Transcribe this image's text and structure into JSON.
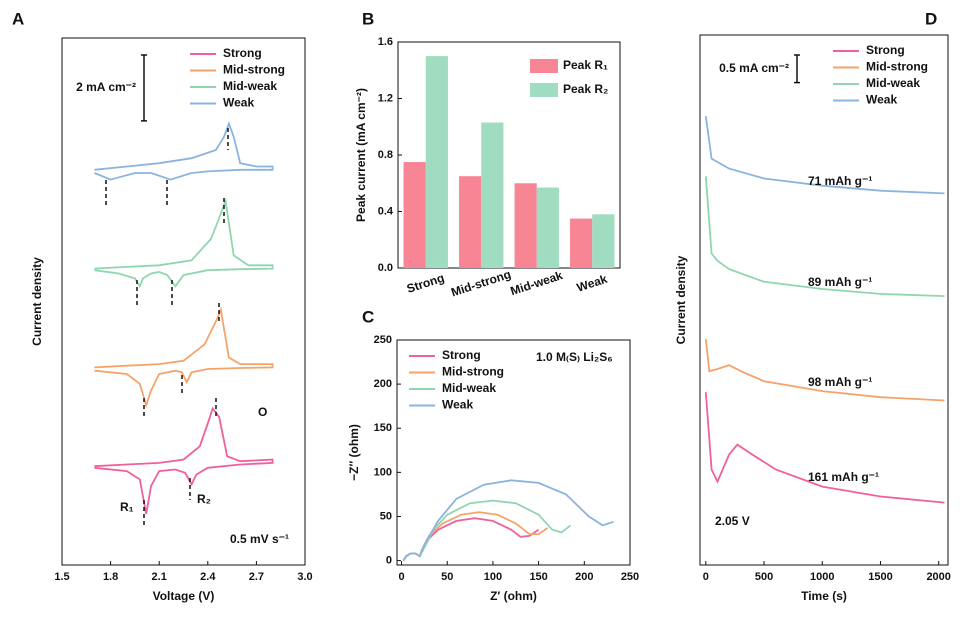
{
  "chart_data": [
    {
      "type": "line",
      "panel": "A",
      "xlabel": "Voltage (V)",
      "ylabel": "Current density",
      "xlim": [
        1.5,
        3.0
      ],
      "xticks": [
        1.5,
        1.8,
        2.1,
        2.4,
        2.7,
        {
          "value": 3,
          "label": "3.0"
        }
      ],
      "ylim": [
        0,
        16
      ],
      "legend": "upper right",
      "scale_bar": {
        "value": 2,
        "label": "2 mA cm⁻²"
      },
      "annotations": [
        "R₁",
        "R₂",
        "O",
        "0.5 mV s⁻¹"
      ],
      "series": [
        {
          "name": "Strong",
          "color": "#f0609e",
          "x": [
            1.7,
            1.9,
            2.1,
            2.25,
            2.35,
            2.4,
            2.43,
            2.47,
            2.52,
            2.6,
            2.8,
            2.8,
            2.6,
            2.4,
            2.33,
            2.3,
            2.26,
            2.2,
            2.1,
            2.05,
            2.02,
            1.98,
            1.9,
            1.7
          ],
          "values": [
            3.0,
            3.05,
            3.1,
            3.2,
            3.6,
            4.3,
            4.75,
            4.5,
            3.3,
            3.15,
            3.2,
            3.1,
            3.05,
            2.95,
            2.75,
            2.45,
            2.8,
            2.9,
            2.85,
            2.4,
            1.55,
            2.6,
            2.85,
            2.95
          ]
        },
        {
          "name": "Mid-strong",
          "color": "#f5a36a",
          "x": [
            1.7,
            1.9,
            2.1,
            2.25,
            2.38,
            2.43,
            2.46,
            2.48,
            2.53,
            2.6,
            2.8,
            2.8,
            2.6,
            2.4,
            2.3,
            2.27,
            2.24,
            2.2,
            2.1,
            2.05,
            2.02,
            1.98,
            1.9,
            1.7
          ],
          "values": [
            6.0,
            6.05,
            6.1,
            6.2,
            6.7,
            7.2,
            7.5,
            7.75,
            6.3,
            6.1,
            6.1,
            6.0,
            5.98,
            5.95,
            5.85,
            5.55,
            5.85,
            5.9,
            5.8,
            5.3,
            4.85,
            5.5,
            5.8,
            5.9
          ]
        },
        {
          "name": "Mid-weak",
          "color": "#8fd6b0",
          "x": [
            1.7,
            1.9,
            2.1,
            2.3,
            2.42,
            2.46,
            2.49,
            2.51,
            2.56,
            2.65,
            2.8,
            2.8,
            2.6,
            2.4,
            2.25,
            2.2,
            2.15,
            2.1,
            2.05,
            2.0,
            1.98,
            1.95,
            1.85,
            1.7
          ],
          "values": [
            9.0,
            9.05,
            9.1,
            9.25,
            9.9,
            10.4,
            10.8,
            11.05,
            9.4,
            9.1,
            9.1,
            9.0,
            8.98,
            8.95,
            8.8,
            8.46,
            8.8,
            8.9,
            8.85,
            8.7,
            8.46,
            8.7,
            8.85,
            8.95
          ]
        },
        {
          "name": "Weak",
          "color": "#8ab4e0",
          "x": [
            1.7,
            1.9,
            2.1,
            2.3,
            2.45,
            2.5,
            2.53,
            2.56,
            2.6,
            2.7,
            2.8,
            2.8,
            2.6,
            2.4,
            2.3,
            2.17,
            2.05,
            1.95,
            1.8,
            1.7
          ],
          "values": [
            12.0,
            12.1,
            12.2,
            12.35,
            12.6,
            13.0,
            13.4,
            13.0,
            12.2,
            12.1,
            12.1,
            12.0,
            12.0,
            11.95,
            11.9,
            11.7,
            11.9,
            11.9,
            11.7,
            11.9
          ]
        }
      ]
    },
    {
      "type": "bar",
      "panel": "B",
      "ylabel": "Peak current (mA cm⁻²)",
      "categories": [
        "Strong",
        "Mid-strong",
        "Mid-weak",
        "Weak"
      ],
      "ylim": [
        0,
        1.6
      ],
      "yticks": [
        {
          "value": 0,
          "label": "0.0"
        },
        0.4,
        0.8,
        1.2,
        1.6
      ],
      "legend": "upper right",
      "series": [
        {
          "name": "Peak R₁",
          "color": "#f78593",
          "values": [
            0.75,
            0.65,
            0.6,
            0.35
          ]
        },
        {
          "name": "Peak R₂",
          "color": "#9fdcc0",
          "values": [
            1.5,
            1.03,
            0.57,
            0.38
          ]
        }
      ]
    },
    {
      "type": "line",
      "panel": "C",
      "xlabel": "Z′ (ohm)",
      "ylabel": "−Z″ (ohm)",
      "xlim": [
        -5,
        250
      ],
      "xticks": [
        0,
        50,
        100,
        150,
        200,
        250
      ],
      "ylim": [
        -5,
        250
      ],
      "yticks": [
        0,
        50,
        100,
        150,
        200,
        250
      ],
      "legend": "upper left",
      "annotations": [
        "1.0 M₍S₎ Li₂S₆"
      ],
      "series": [
        {
          "name": "Strong",
          "color": "#f0609e",
          "x": [
            2,
            5,
            10,
            15,
            20,
            22,
            30,
            40,
            60,
            80,
            100,
            120,
            130,
            140,
            150
          ],
          "values": [
            0,
            5,
            8,
            8,
            5,
            10,
            25,
            35,
            45,
            48,
            45,
            35,
            27,
            28,
            35
          ]
        },
        {
          "name": "Mid-strong",
          "color": "#f5a36a",
          "x": [
            2,
            5,
            10,
            15,
            20,
            22,
            30,
            45,
            65,
            85,
            105,
            125,
            140,
            150,
            160
          ],
          "values": [
            0,
            5,
            8,
            8,
            5,
            12,
            28,
            42,
            52,
            55,
            52,
            42,
            30,
            30,
            37
          ]
        },
        {
          "name": "Mid-weak",
          "color": "#8fd6b0",
          "x": [
            2,
            5,
            10,
            15,
            20,
            25,
            35,
            50,
            75,
            100,
            125,
            150,
            165,
            175,
            185
          ],
          "values": [
            0,
            5,
            8,
            8,
            5,
            15,
            35,
            52,
            65,
            68,
            65,
            52,
            35,
            32,
            40
          ]
        },
        {
          "name": "Weak",
          "color": "#8ab4e0",
          "x": [
            2,
            5,
            10,
            15,
            20,
            25,
            40,
            60,
            90,
            120,
            150,
            180,
            205,
            220,
            232
          ],
          "values": [
            0,
            5,
            8,
            8,
            5,
            18,
            45,
            70,
            86,
            91,
            88,
            75,
            50,
            40,
            44
          ]
        }
      ]
    },
    {
      "type": "line",
      "panel": "D",
      "xlabel": "Time (s)",
      "ylabel": "Current density",
      "xlim": [
        -50,
        2080
      ],
      "xticks": [
        0,
        500,
        1000,
        1500,
        2000
      ],
      "ylim": [
        0,
        9.6
      ],
      "legend": "upper right",
      "scale_bar": {
        "value": 0.5,
        "label": "0.5 mA cm⁻²"
      },
      "annotations": [
        "71 mAh g⁻¹",
        "89 mAh g⁻¹",
        "98 mAh g⁻¹",
        "161 mAh g⁻¹",
        "2.05 V"
      ],
      "series": [
        {
          "name": "Strong",
          "color": "#f0609e",
          "x": [
            0,
            50,
            100,
            200,
            270,
            400,
            600,
            1000,
            1500,
            2050
          ],
          "values": [
            3.13,
            1.73,
            1.51,
            2.0,
            2.18,
            2.0,
            1.73,
            1.42,
            1.24,
            1.13
          ]
        },
        {
          "name": "Mid-strong",
          "color": "#f5a36a",
          "x": [
            0,
            30,
            100,
            200,
            300,
            500,
            1000,
            1500,
            2050
          ],
          "values": [
            4.09,
            3.51,
            3.55,
            3.62,
            3.51,
            3.33,
            3.15,
            3.04,
            2.98
          ]
        },
        {
          "name": "Mid-weak",
          "color": "#8fd6b0",
          "x": [
            0,
            50,
            100,
            200,
            500,
            1000,
            1500,
            2050
          ],
          "values": [
            7.04,
            5.64,
            5.51,
            5.36,
            5.13,
            5.0,
            4.91,
            4.87
          ]
        },
        {
          "name": "Weak",
          "color": "#8ab4e0",
          "x": [
            0,
            50,
            200,
            500,
            1000,
            1500,
            2050
          ],
          "values": [
            8.13,
            7.36,
            7.18,
            7.0,
            6.87,
            6.78,
            6.73
          ]
        }
      ]
    }
  ]
}
